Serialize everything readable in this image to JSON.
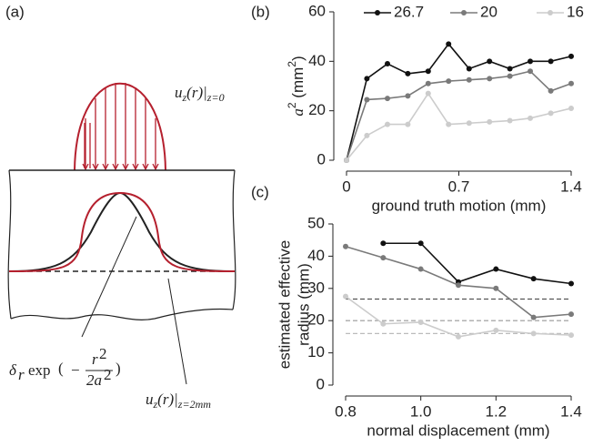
{
  "panel_a": {
    "tag": "(a)",
    "top_label": [
      "u",
      "z",
      "(r)|",
      "z=0"
    ],
    "gauss_label": [
      "δ",
      "r",
      "exp",
      "(",
      "−",
      "r",
      "2",
      "2a",
      "2",
      ")"
    ],
    "bottom_label": [
      "u",
      "z",
      "(r)|",
      "z=2mm"
    ]
  },
  "chart_data": [
    {
      "type": "line",
      "tag": "(b)",
      "y_label_parts": [
        "a",
        "2",
        " (mm",
        "2",
        ")"
      ],
      "x_label": "ground truth motion (mm)",
      "x": [
        0,
        0.127,
        0.255,
        0.382,
        0.509,
        0.636,
        0.764,
        0.891,
        1.018,
        1.145,
        1.273,
        1.4
      ],
      "series": [
        {
          "name": "26.7",
          "color": "#111111",
          "values": [
            0,
            33,
            39,
            35,
            36,
            47,
            37,
            40,
            37,
            40,
            40,
            42
          ]
        },
        {
          "name": "20",
          "color": "#7a7a7a",
          "values": [
            0,
            24.5,
            25,
            26,
            31,
            32,
            32.5,
            33,
            34,
            36,
            28,
            31
          ]
        },
        {
          "name": "16",
          "color": "#cccccc",
          "values": [
            0,
            10,
            14.5,
            14.5,
            27,
            14.5,
            15,
            15.5,
            16,
            17,
            19,
            21
          ]
        }
      ],
      "xlim": [
        0,
        1.4
      ],
      "xticks": [
        0,
        0.7,
        1.4
      ],
      "ylim": [
        0,
        60
      ],
      "yticks": [
        0,
        20,
        40,
        60
      ],
      "legend": "top"
    },
    {
      "type": "line",
      "tag": "(c)",
      "y_label_lines": [
        "estimated effective",
        "radius (mm)"
      ],
      "x_label": "normal displacement (mm)",
      "x": [
        0.8,
        0.9,
        1.0,
        1.1,
        1.2,
        1.3,
        1.4
      ],
      "series": [
        {
          "name": "26.7",
          "color": "#111111",
          "values": [
            null,
            44,
            44,
            32,
            36,
            33,
            31.5
          ]
        },
        {
          "name": "20",
          "color": "#7a7a7a",
          "values": [
            43,
            39.5,
            36,
            31,
            30,
            21,
            22
          ]
        },
        {
          "name": "16",
          "color": "#cccccc",
          "values": [
            27.5,
            19,
            19.5,
            15,
            17,
            16,
            15.5
          ]
        }
      ],
      "reference_lines": [
        {
          "value": 26.7,
          "color": "#555555"
        },
        {
          "value": 20,
          "color": "#999999"
        },
        {
          "value": 16,
          "color": "#bbbbbb"
        }
      ],
      "xlim": [
        0.8,
        1.4
      ],
      "xticks": [
        {
          "value": 0.8,
          "label": "0.8"
        },
        {
          "value": 1.0,
          "label": "1.0"
        },
        {
          "value": 1.2,
          "label": "1.2"
        },
        {
          "value": 1.4,
          "label": "1.4"
        }
      ],
      "ylim": [
        0,
        50
      ],
      "yticks": [
        0,
        10,
        20,
        30,
        40,
        50
      ]
    }
  ]
}
